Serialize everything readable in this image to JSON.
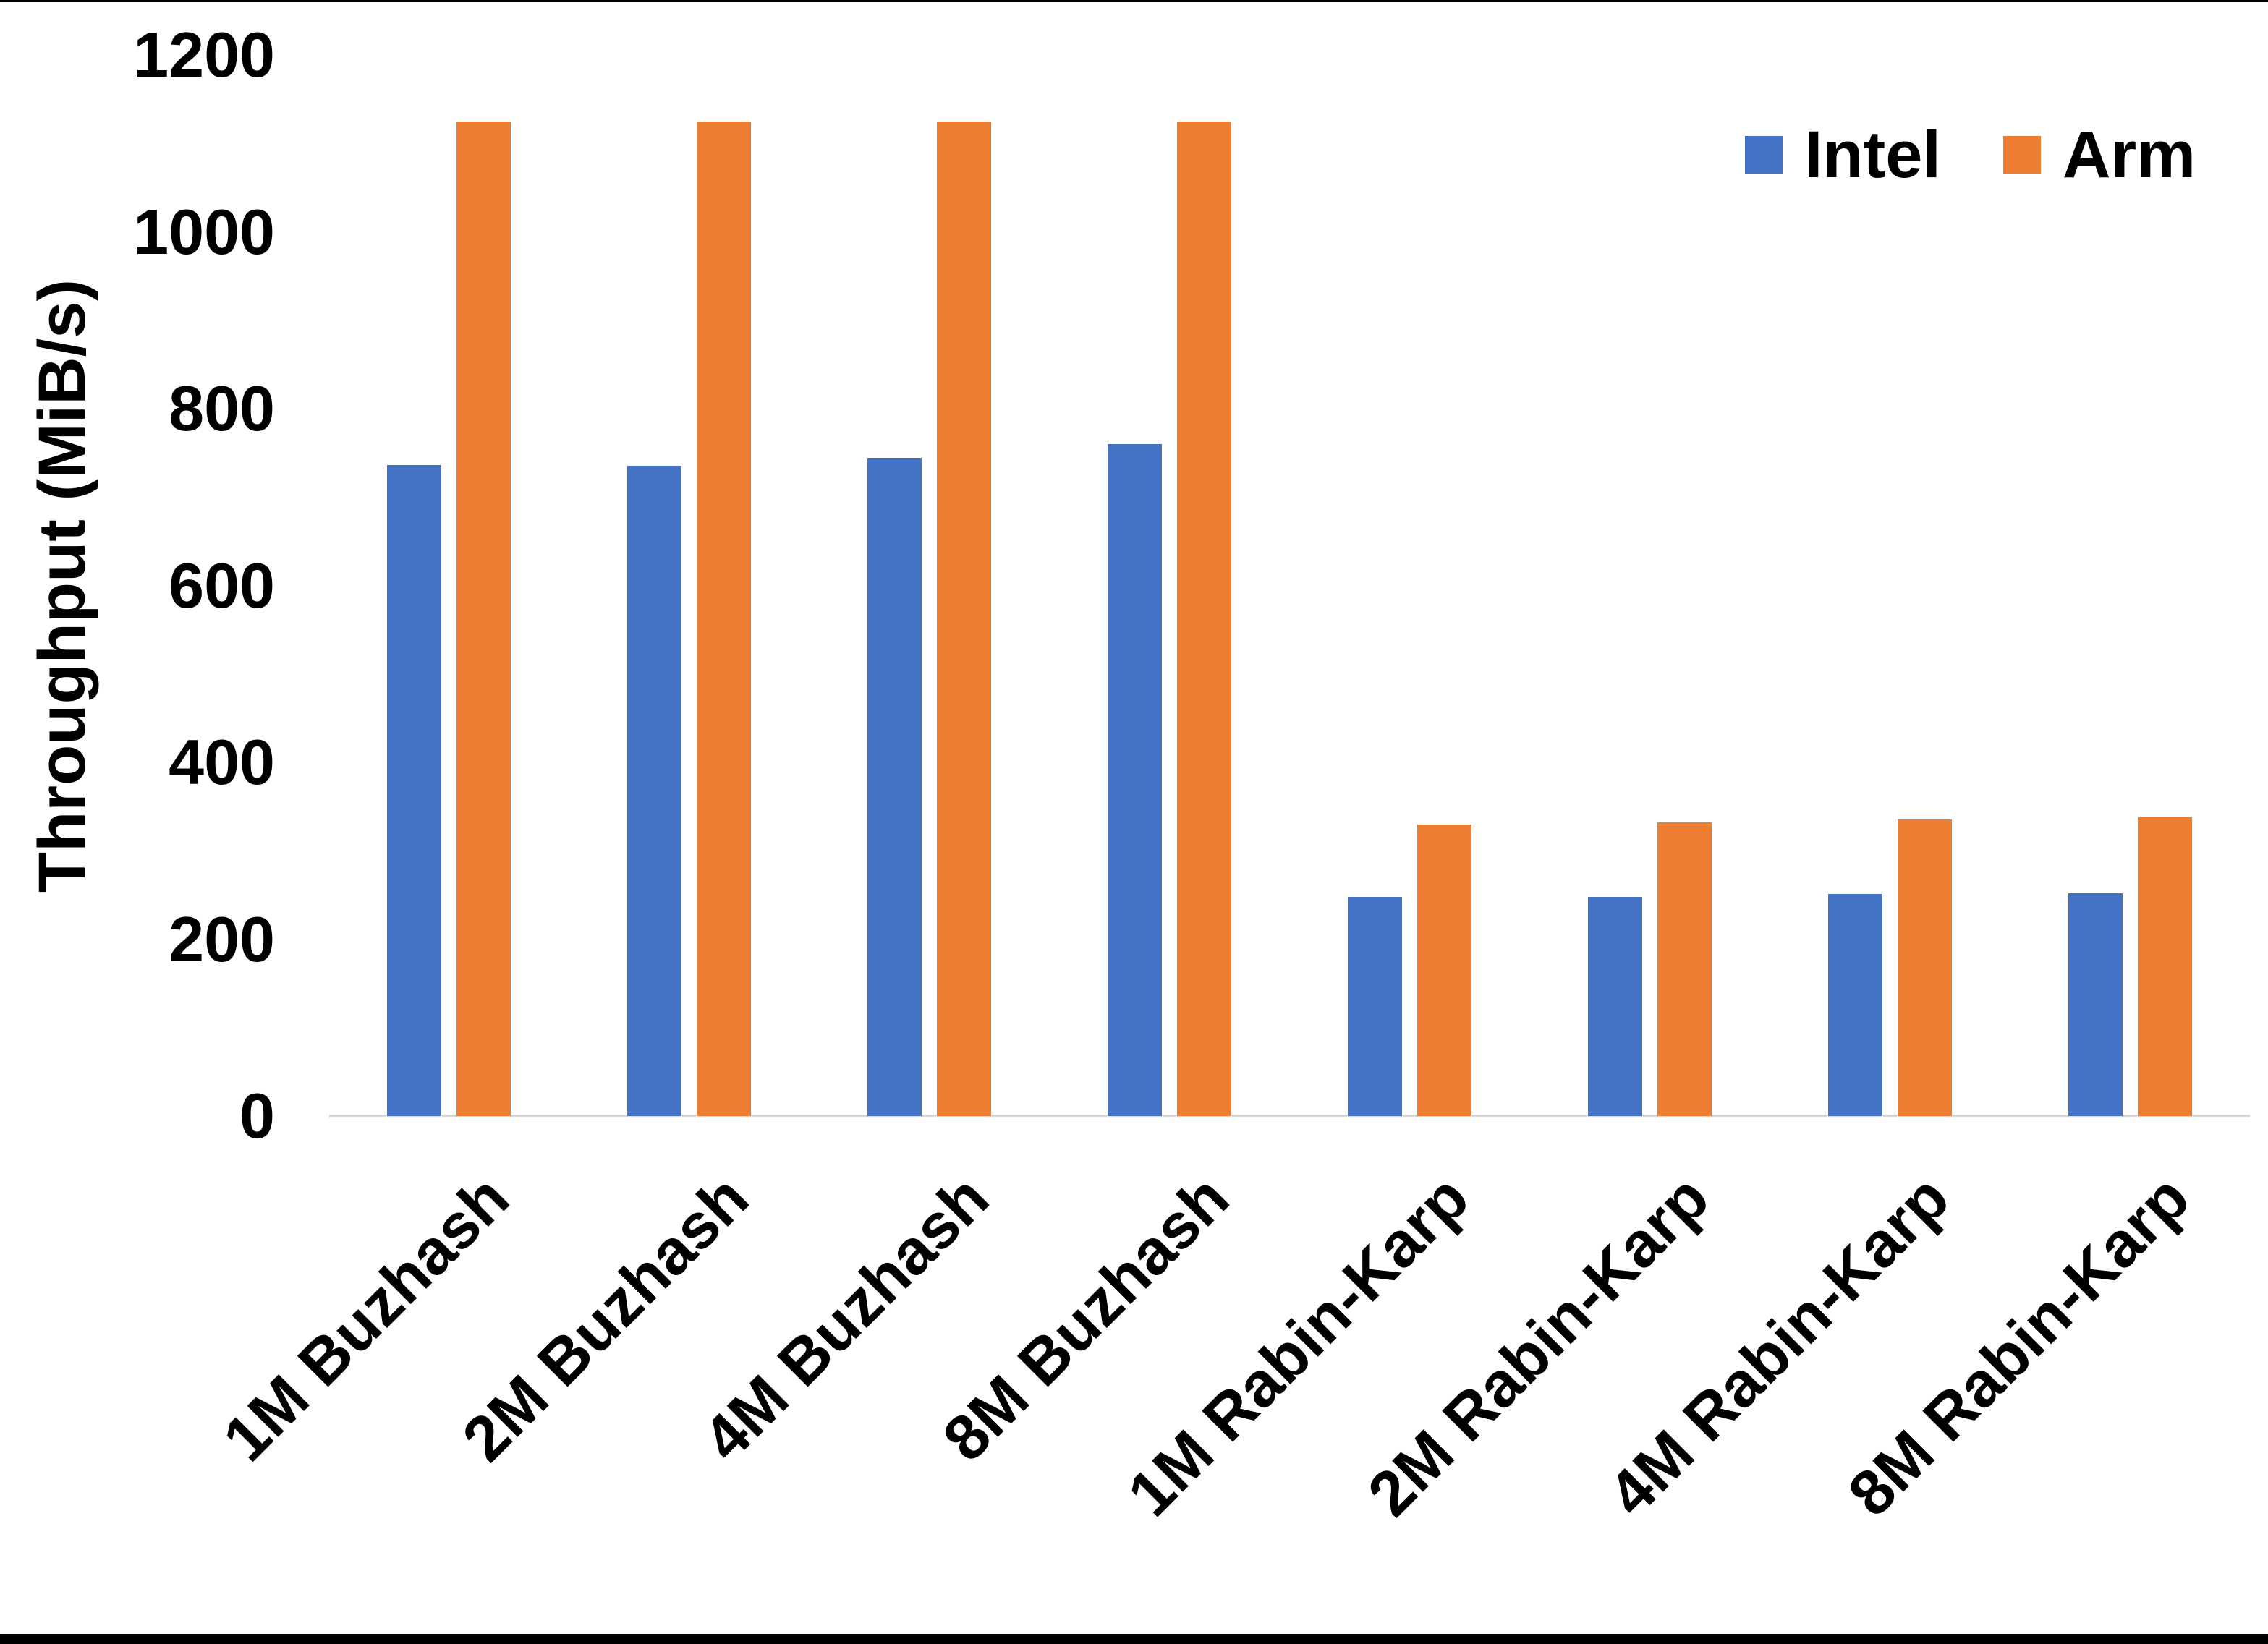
{
  "chart_data": {
    "type": "bar",
    "categories": [
      "1M Buzhash",
      "2M Buzhash",
      "4M Buzhash",
      "8M Buzhash",
      "1M Rabin-Karp",
      "2M Rabin-Karp",
      "4M Rabin-Karp",
      "8M Rabin-Karp"
    ],
    "series": [
      {
        "name": "Intel",
        "color": "#4472C4",
        "values": [
          736,
          735,
          744,
          760,
          248,
          248,
          251,
          252
        ]
      },
      {
        "name": "Arm",
        "color": "#ED7D31",
        "values": [
          1125,
          1125,
          1125,
          1125,
          330,
          332,
          335,
          338
        ]
      }
    ],
    "title": "",
    "xlabel": "",
    "ylabel": "Throughput (MiB/s)",
    "ylim": [
      0,
      1200
    ],
    "yticks": [
      0,
      200,
      400,
      600,
      800,
      1000,
      1200
    ],
    "grid": false,
    "legend_position": "top-right",
    "axis_line_color": "#D9D9D9",
    "text_color": "#000000"
  }
}
